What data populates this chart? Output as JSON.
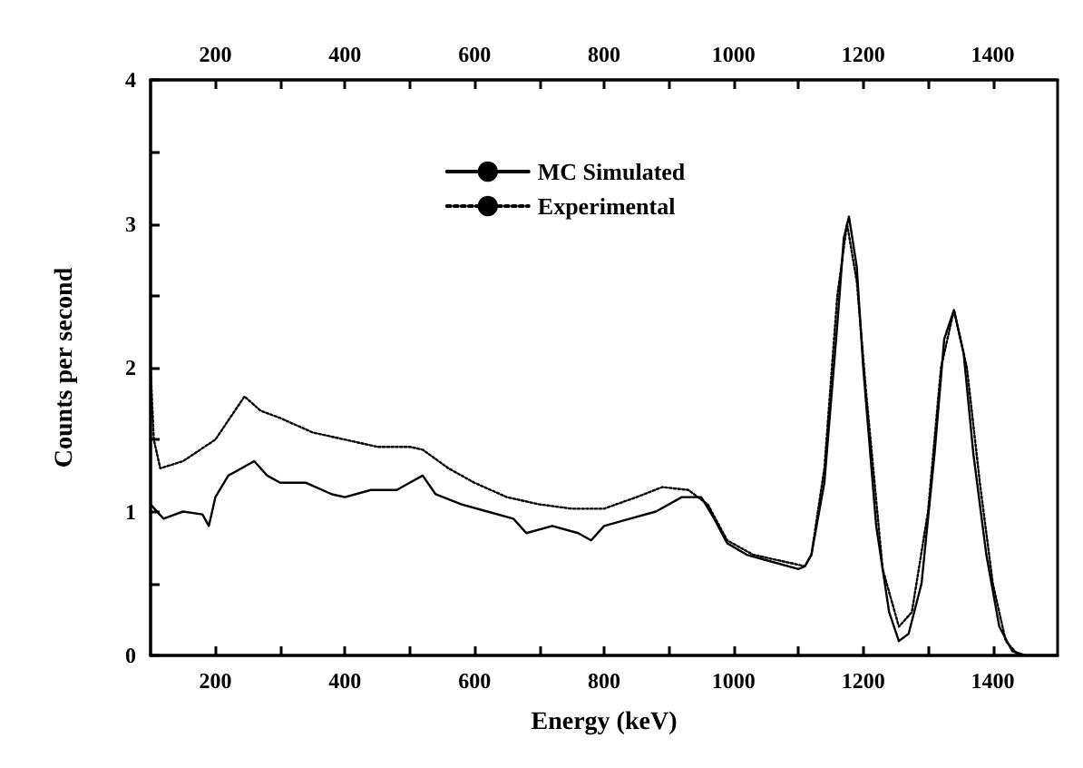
{
  "chart_data": {
    "type": "line",
    "xlabel": "Energy (keV)",
    "ylabel": "Counts per second",
    "xlim": [
      100,
      1500
    ],
    "ylim": [
      0,
      4
    ],
    "xticks": [
      200,
      {
        "value": 300,
        "label": null
      },
      400,
      {
        "value": 500,
        "label": null
      },
      600,
      {
        "value": 700,
        "label": null
      },
      800,
      {
        "value": 900,
        "label": null
      },
      1000,
      {
        "value": 1100,
        "label": null
      },
      1200,
      {
        "value": 1300,
        "label": null
      },
      1400
    ],
    "x2lim": [
      100,
      1500
    ],
    "x2ticks": [
      200,
      {
        "value": 300,
        "label": null
      },
      400,
      {
        "value": 500,
        "label": null
      },
      600,
      {
        "value": 700,
        "label": null
      },
      800,
      {
        "value": 900,
        "label": null
      },
      1000,
      {
        "value": 1100,
        "label": null
      },
      1200,
      {
        "value": 1300,
        "label": null
      },
      1400
    ],
    "yticks": [
      0,
      {
        "value": 0.5,
        "label": null
      },
      1,
      {
        "value": 1.5,
        "label": null
      },
      2,
      {
        "value": 2.5,
        "label": null
      },
      3,
      {
        "value": 3.5,
        "label": null
      },
      4
    ],
    "grid": false,
    "legend": "top",
    "marker": "none",
    "series": [
      {
        "name": "MC Simulated",
        "color": "#000000",
        "line_style": "solid",
        "x": [
          100,
          120,
          150,
          180,
          190,
          200,
          220,
          240,
          260,
          280,
          300,
          340,
          380,
          400,
          440,
          480,
          500,
          520,
          540,
          580,
          620,
          660,
          680,
          720,
          760,
          780,
          800,
          840,
          880,
          920,
          950,
          970,
          990,
          1020,
          1060,
          1100,
          1110,
          1120,
          1140,
          1160,
          1170,
          1178,
          1190,
          1200,
          1220,
          1240,
          1255,
          1270,
          1290,
          1310,
          1325,
          1340,
          1355,
          1370,
          1390,
          1410,
          1430,
          1450,
          1500
        ],
        "values": [
          1.05,
          0.95,
          1.0,
          0.98,
          0.9,
          1.1,
          1.25,
          1.3,
          1.35,
          1.25,
          1.2,
          1.2,
          1.12,
          1.1,
          1.15,
          1.15,
          1.2,
          1.25,
          1.12,
          1.05,
          1.0,
          0.95,
          0.85,
          0.9,
          0.85,
          0.8,
          0.9,
          0.95,
          1.0,
          1.1,
          1.1,
          0.95,
          0.78,
          0.7,
          0.65,
          0.6,
          0.62,
          0.7,
          1.2,
          2.3,
          2.9,
          3.05,
          2.7,
          2.0,
          0.9,
          0.3,
          0.1,
          0.15,
          0.5,
          1.4,
          2.2,
          2.4,
          2.1,
          1.4,
          0.7,
          0.2,
          0.03,
          0,
          0
        ]
      },
      {
        "name": "Experimental",
        "color": "#000000",
        "line_style": "dotted",
        "x": [
          100,
          105,
          115,
          150,
          200,
          230,
          245,
          270,
          300,
          350,
          400,
          450,
          500,
          520,
          560,
          600,
          650,
          700,
          750,
          800,
          850,
          890,
          930,
          960,
          990,
          1030,
          1080,
          1110,
          1120,
          1140,
          1160,
          1175,
          1190,
          1205,
          1230,
          1255,
          1275,
          1300,
          1320,
          1340,
          1360,
          1380,
          1400,
          1420,
          1440
        ],
        "values": [
          2.0,
          1.5,
          1.3,
          1.35,
          1.5,
          1.7,
          1.8,
          1.7,
          1.65,
          1.55,
          1.5,
          1.45,
          1.45,
          1.43,
          1.3,
          1.2,
          1.1,
          1.05,
          1.02,
          1.02,
          1.1,
          1.17,
          1.15,
          1.05,
          0.8,
          0.7,
          0.65,
          0.62,
          0.7,
          1.3,
          2.5,
          3.0,
          2.6,
          1.8,
          0.6,
          0.2,
          0.3,
          1.0,
          2.0,
          2.4,
          2.0,
          1.2,
          0.5,
          0.1,
          0.0
        ]
      }
    ]
  }
}
